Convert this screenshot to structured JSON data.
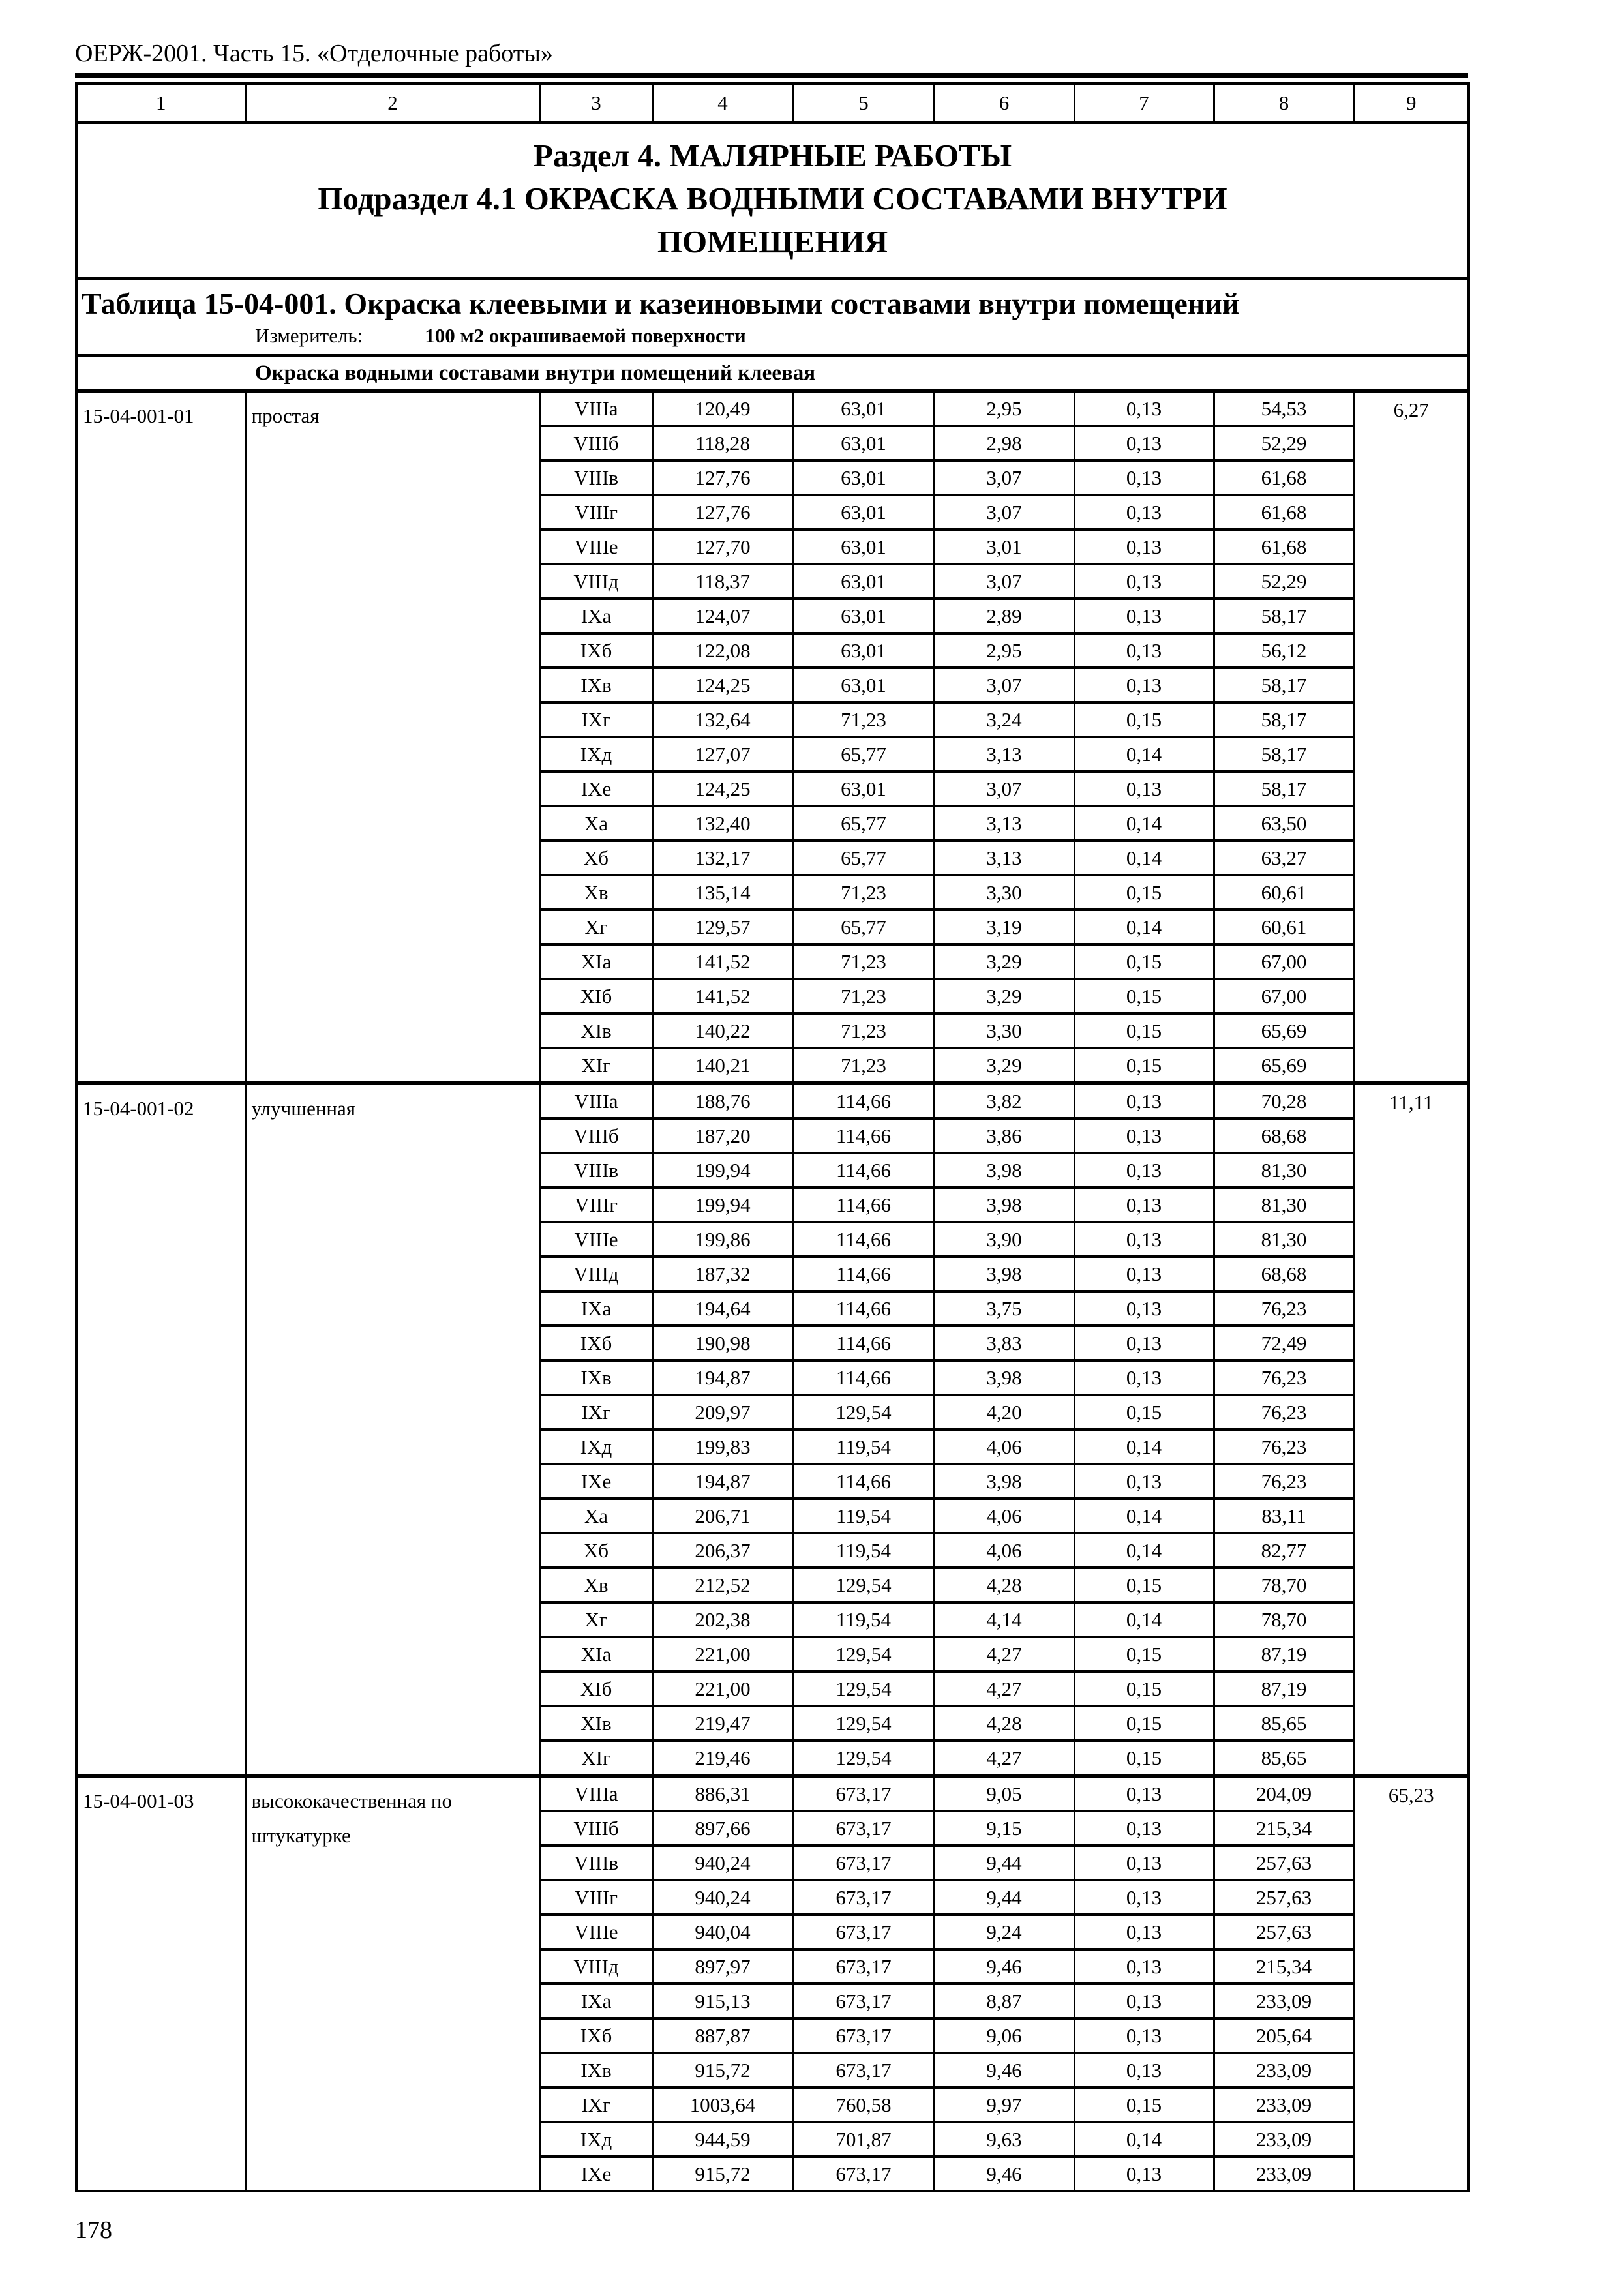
{
  "page": {
    "header": "ОЕРЖ-2001. Часть 15. «Отделочные работы»",
    "page_number": "178"
  },
  "table": {
    "column_numbers": [
      "1",
      "2",
      "3",
      "4",
      "5",
      "6",
      "7",
      "8",
      "9"
    ],
    "section_title_line1": "Раздел 4. МАЛЯРНЫЕ РАБОТЫ",
    "section_title_line2": "Подраздел 4.1 ОКРАСКА ВОДНЫМИ СОСТАВАМИ ВНУТРИ",
    "section_title_line3": "ПОМЕЩЕНИЯ",
    "table_title": "Таблица 15-04-001. Окраска клеевыми и казеиновыми составами внутри помещений",
    "meter_label": "Измеритель:",
    "meter_value": "100 м2 окрашиваемой поверхности",
    "group_header": "Окраска водными составами внутри помещений клеевая",
    "blocks": [
      {
        "code": "15-04-001-01",
        "description": "простая",
        "extra": "6,27",
        "rows": [
          [
            "VIIIа",
            "120,49",
            "63,01",
            "2,95",
            "0,13",
            "54,53"
          ],
          [
            "VIIIб",
            "118,28",
            "63,01",
            "2,98",
            "0,13",
            "52,29"
          ],
          [
            "VIIIв",
            "127,76",
            "63,01",
            "3,07",
            "0,13",
            "61,68"
          ],
          [
            "VIIIг",
            "127,76",
            "63,01",
            "3,07",
            "0,13",
            "61,68"
          ],
          [
            "VIIIе",
            "127,70",
            "63,01",
            "3,01",
            "0,13",
            "61,68"
          ],
          [
            "VIIIд",
            "118,37",
            "63,01",
            "3,07",
            "0,13",
            "52,29"
          ],
          [
            "IXа",
            "124,07",
            "63,01",
            "2,89",
            "0,13",
            "58,17"
          ],
          [
            "IXб",
            "122,08",
            "63,01",
            "2,95",
            "0,13",
            "56,12"
          ],
          [
            "IXв",
            "124,25",
            "63,01",
            "3,07",
            "0,13",
            "58,17"
          ],
          [
            "IXг",
            "132,64",
            "71,23",
            "3,24",
            "0,15",
            "58,17"
          ],
          [
            "IXд",
            "127,07",
            "65,77",
            "3,13",
            "0,14",
            "58,17"
          ],
          [
            "IXе",
            "124,25",
            "63,01",
            "3,07",
            "0,13",
            "58,17"
          ],
          [
            "Xа",
            "132,40",
            "65,77",
            "3,13",
            "0,14",
            "63,50"
          ],
          [
            "Xб",
            "132,17",
            "65,77",
            "3,13",
            "0,14",
            "63,27"
          ],
          [
            "Xв",
            "135,14",
            "71,23",
            "3,30",
            "0,15",
            "60,61"
          ],
          [
            "Xг",
            "129,57",
            "65,77",
            "3,19",
            "0,14",
            "60,61"
          ],
          [
            "XIа",
            "141,52",
            "71,23",
            "3,29",
            "0,15",
            "67,00"
          ],
          [
            "XIб",
            "141,52",
            "71,23",
            "3,29",
            "0,15",
            "67,00"
          ],
          [
            "XIв",
            "140,22",
            "71,23",
            "3,30",
            "0,15",
            "65,69"
          ],
          [
            "XIг",
            "140,21",
            "71,23",
            "3,29",
            "0,15",
            "65,69"
          ]
        ]
      },
      {
        "code": "15-04-001-02",
        "description": "улучшенная",
        "extra": "11,11",
        "rows": [
          [
            "VIIIа",
            "188,76",
            "114,66",
            "3,82",
            "0,13",
            "70,28"
          ],
          [
            "VIIIб",
            "187,20",
            "114,66",
            "3,86",
            "0,13",
            "68,68"
          ],
          [
            "VIIIв",
            "199,94",
            "114,66",
            "3,98",
            "0,13",
            "81,30"
          ],
          [
            "VIIIг",
            "199,94",
            "114,66",
            "3,98",
            "0,13",
            "81,30"
          ],
          [
            "VIIIе",
            "199,86",
            "114,66",
            "3,90",
            "0,13",
            "81,30"
          ],
          [
            "VIIIд",
            "187,32",
            "114,66",
            "3,98",
            "0,13",
            "68,68"
          ],
          [
            "IXа",
            "194,64",
            "114,66",
            "3,75",
            "0,13",
            "76,23"
          ],
          [
            "IXб",
            "190,98",
            "114,66",
            "3,83",
            "0,13",
            "72,49"
          ],
          [
            "IXв",
            "194,87",
            "114,66",
            "3,98",
            "0,13",
            "76,23"
          ],
          [
            "IXг",
            "209,97",
            "129,54",
            "4,20",
            "0,15",
            "76,23"
          ],
          [
            "IXд",
            "199,83",
            "119,54",
            "4,06",
            "0,14",
            "76,23"
          ],
          [
            "IXе",
            "194,87",
            "114,66",
            "3,98",
            "0,13",
            "76,23"
          ],
          [
            "Xа",
            "206,71",
            "119,54",
            "4,06",
            "0,14",
            "83,11"
          ],
          [
            "Xб",
            "206,37",
            "119,54",
            "4,06",
            "0,14",
            "82,77"
          ],
          [
            "Xв",
            "212,52",
            "129,54",
            "4,28",
            "0,15",
            "78,70"
          ],
          [
            "Xг",
            "202,38",
            "119,54",
            "4,14",
            "0,14",
            "78,70"
          ],
          [
            "XIа",
            "221,00",
            "129,54",
            "4,27",
            "0,15",
            "87,19"
          ],
          [
            "XIб",
            "221,00",
            "129,54",
            "4,27",
            "0,15",
            "87,19"
          ],
          [
            "XIв",
            "219,47",
            "129,54",
            "4,28",
            "0,15",
            "85,65"
          ],
          [
            "XIг",
            "219,46",
            "129,54",
            "4,27",
            "0,15",
            "85,65"
          ]
        ]
      },
      {
        "code": "15-04-001-03",
        "description": "высококачественная по штукатурке",
        "extra": "65,23",
        "rows": [
          [
            "VIIIа",
            "886,31",
            "673,17",
            "9,05",
            "0,13",
            "204,09"
          ],
          [
            "VIIIб",
            "897,66",
            "673,17",
            "9,15",
            "0,13",
            "215,34"
          ],
          [
            "VIIIв",
            "940,24",
            "673,17",
            "9,44",
            "0,13",
            "257,63"
          ],
          [
            "VIIIг",
            "940,24",
            "673,17",
            "9,44",
            "0,13",
            "257,63"
          ],
          [
            "VIIIе",
            "940,04",
            "673,17",
            "9,24",
            "0,13",
            "257,63"
          ],
          [
            "VIIIд",
            "897,97",
            "673,17",
            "9,46",
            "0,13",
            "215,34"
          ],
          [
            "IXа",
            "915,13",
            "673,17",
            "8,87",
            "0,13",
            "233,09"
          ],
          [
            "IXб",
            "887,87",
            "673,17",
            "9,06",
            "0,13",
            "205,64"
          ],
          [
            "IXв",
            "915,72",
            "673,17",
            "9,46",
            "0,13",
            "233,09"
          ],
          [
            "IXг",
            "1003,64",
            "760,58",
            "9,97",
            "0,15",
            "233,09"
          ],
          [
            "IXд",
            "944,59",
            "701,87",
            "9,63",
            "0,14",
            "233,09"
          ],
          [
            "IXе",
            "915,72",
            "673,17",
            "9,46",
            "0,13",
            "233,09"
          ]
        ]
      }
    ]
  }
}
